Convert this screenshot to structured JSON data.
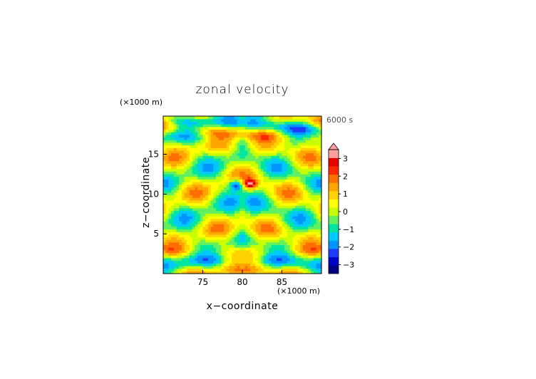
{
  "chart_data": {
    "type": "heatmap",
    "title": "zonal velocity",
    "xlabel": "x−coordinate",
    "ylabel": "z−coordinate",
    "x_scale_label": "(×1000 m)",
    "y_scale_label": "(×1000 m)",
    "time_label": "6000 s",
    "x_ticks": [
      75,
      80,
      85
    ],
    "y_ticks": [
      5,
      10,
      15
    ],
    "xlim": [
      70,
      90
    ],
    "ylim": [
      0,
      19.8
    ],
    "colorbar": {
      "ticks": [
        3,
        2,
        1,
        0,
        -1,
        -2,
        -3
      ],
      "tick_labels": [
        "3",
        "2",
        "1",
        "0",
        "−1",
        "−2",
        "−3"
      ],
      "range": [
        -3.5,
        3.5
      ],
      "extend": "max",
      "colors": [
        "#000080",
        "#0000c8",
        "#1e3cff",
        "#0096ff",
        "#00c8ff",
        "#00e6a0",
        "#60f060",
        "#c8ff00",
        "#ffff00",
        "#ffd200",
        "#ffa500",
        "#ff6e00",
        "#ff2800",
        "#e60000",
        "#ffa0a0"
      ]
    },
    "features": {
      "jet_center_x": 80,
      "jet_center_z": 11.5,
      "min_value_location": [
        79.4,
        11.2
      ],
      "max_value_location": [
        80.8,
        11.3
      ],
      "min_value": -3.2,
      "max_value": 3.2
    }
  }
}
